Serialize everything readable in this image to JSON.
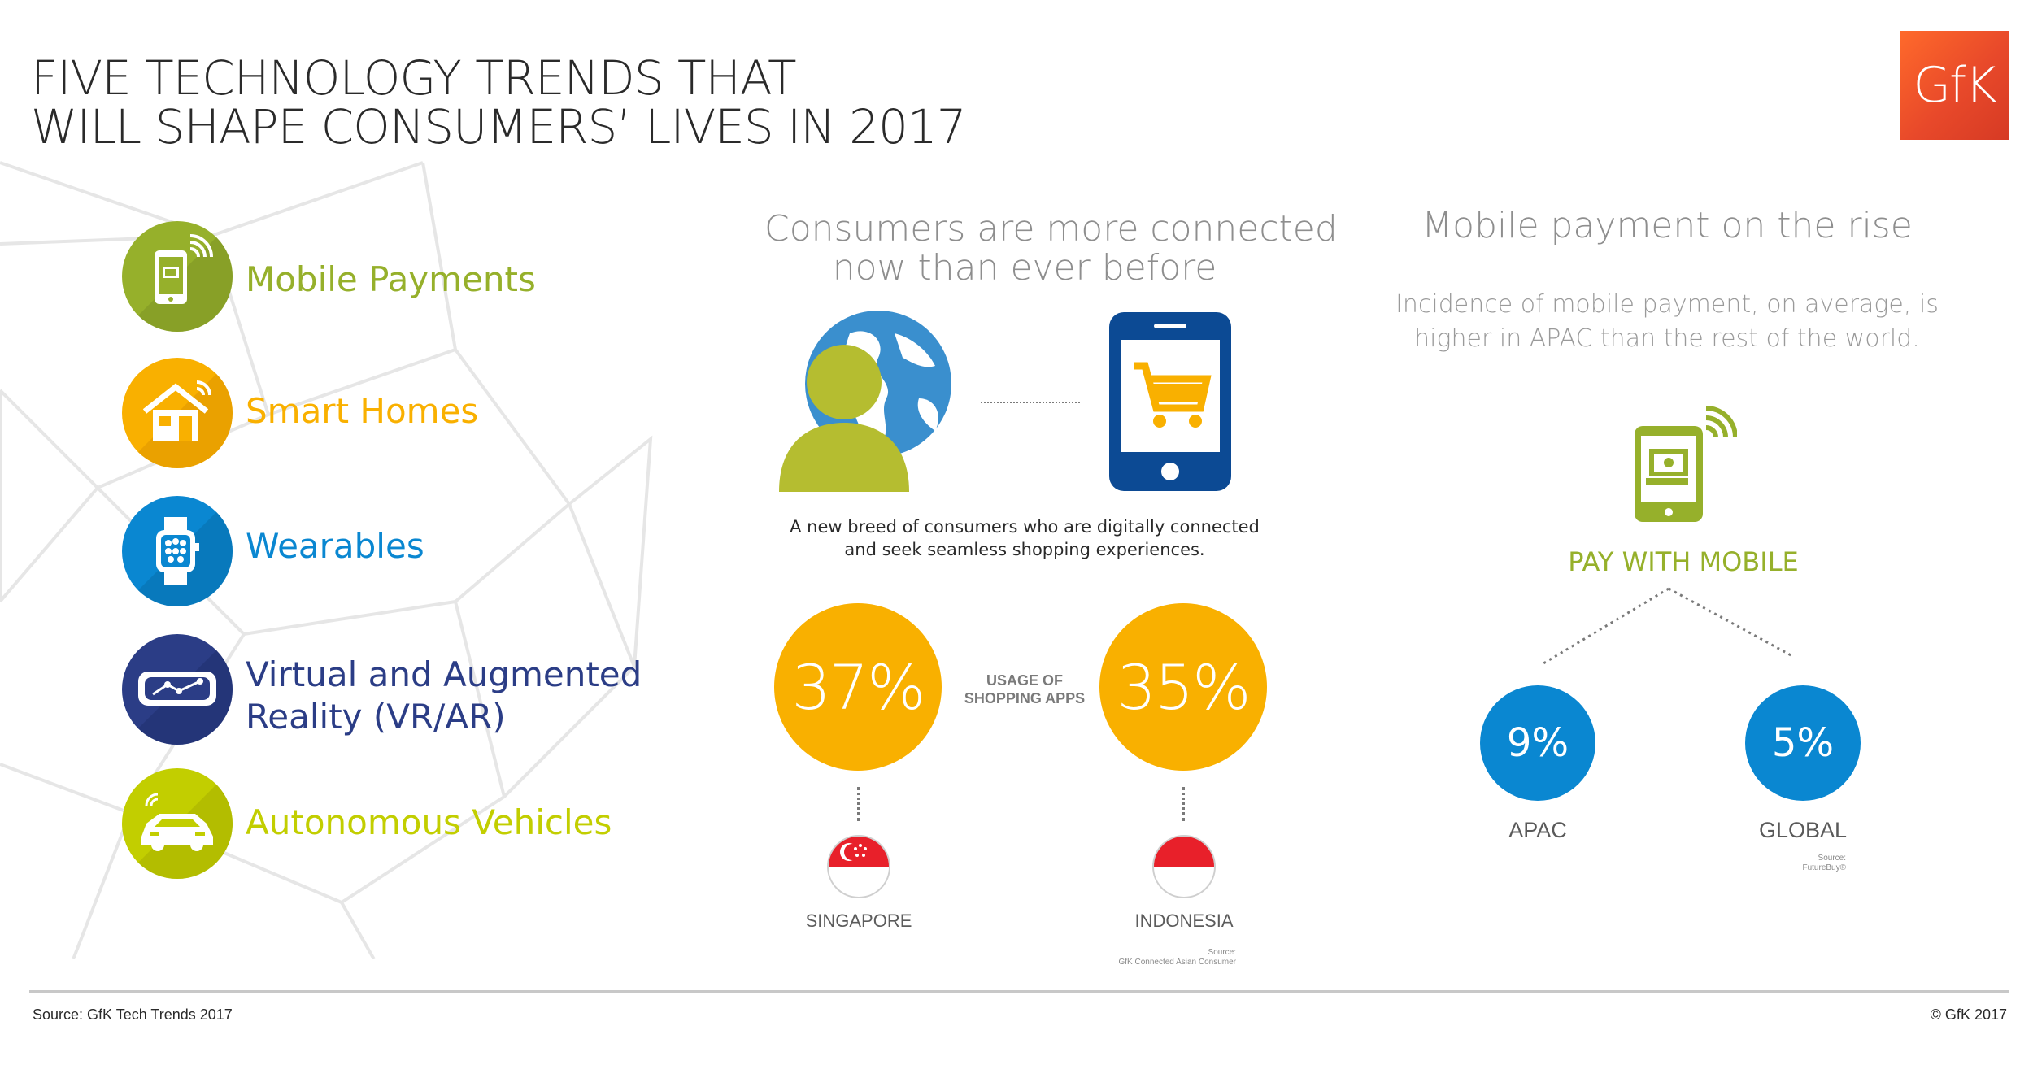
{
  "header": {
    "title_line1": "FIVE TECHNOLOGY TRENDS THAT",
    "title_line2": "WILL SHAPE CONSUMERS’ LIVES IN 2017",
    "logo_text": "GfK"
  },
  "trends": [
    {
      "label": "Mobile Payments",
      "color": "#96b02b",
      "icon": "mobile-payment-icon"
    },
    {
      "label": "Smart Homes",
      "color": "#f9b000",
      "icon": "smart-home-icon"
    },
    {
      "label": "Wearables",
      "color": "#0a87d1",
      "icon": "smartwatch-icon"
    },
    {
      "label_line1": "Virtual and Augmented",
      "label_line2": "Reality (VR/AR)",
      "color": "#2b3d86",
      "icon": "vr-headset-icon"
    },
    {
      "label": "Autonomous Vehicles",
      "color": "#c2ce00",
      "icon": "car-icon"
    }
  ],
  "connected": {
    "title_line1": "Consumers are more connected",
    "title_line2": "now than ever before",
    "desc_line1": "A new breed of consumers who are digitally connected",
    "desc_line2": "and seek seamless shopping experiences.",
    "usage_line1": "USAGE OF",
    "usage_line2": "SHOPPING APPS",
    "singapore_value": "37%",
    "indonesia_value": "35%",
    "singapore_label": "SINGAPORE",
    "indonesia_label": "INDONESIA",
    "source_line1": "Source:",
    "source_line2": "GfK Connected Asian Consumer"
  },
  "mobile_payment": {
    "title": "Mobile payment on the rise",
    "sub_line1": "Incidence of mobile payment, on average, is",
    "sub_line2": "higher in APAC than the rest of the world.",
    "pay_label": "PAY WITH MOBILE",
    "apac_value": "9%",
    "global_value": "5%",
    "apac_label": "APAC",
    "global_label": "GLOBAL",
    "source_line1": "Source:",
    "source_line2": "FutureBuy®"
  },
  "footer": {
    "source": "Source: GfK Tech Trends 2017",
    "copyright": "© GfK 2017"
  },
  "colors": {
    "yellow": "#f9b000",
    "blue": "#0a87d1",
    "green": "#96b02b",
    "navy": "#2b3d86",
    "lime": "#c2ce00",
    "gfk_orange": "#e8492a"
  }
}
